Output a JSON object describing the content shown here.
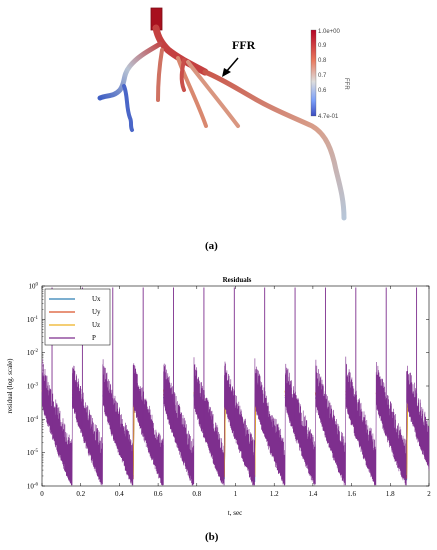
{
  "panel_a": {
    "caption": "(a)",
    "ffr_annotation": "FFR",
    "colorbar": {
      "max_label": "1.0e+00",
      "min_label": "4.7e-01",
      "ticks": [
        "0.9",
        "0.8",
        "0.7",
        "0.6"
      ],
      "title": "FFR",
      "colors": {
        "high": "#b40426",
        "mid": "#dddddd",
        "low": "#3b4cc0"
      }
    }
  },
  "panel_b": {
    "caption": "(b)"
  },
  "chart_data": {
    "type": "line",
    "title": "Residuals",
    "xlabel": "t, sec",
    "ylabel": "residual (log. scale)",
    "xlim": [
      0,
      2
    ],
    "ylim": [
      1e-06,
      1
    ],
    "log_y": true,
    "x_ticks": [
      "0",
      "0.2",
      "0.4",
      "0.6",
      "0.8",
      "1",
      "1.2",
      "1.4",
      "1.6",
      "1.8",
      "2"
    ],
    "y_ticks": [
      "10^-6",
      "10^-5",
      "10^-4",
      "10^-3",
      "10^-2",
      "10^-1",
      "10^0"
    ],
    "legend_position": "top-left",
    "series": [
      {
        "name": "Ux",
        "color": "#2f7fb5"
      },
      {
        "name": "Uy",
        "color": "#d9542a"
      },
      {
        "name": "Uz",
        "color": "#eeb020"
      },
      {
        "name": "P",
        "color": "#7e2f8e"
      }
    ],
    "cycle_period": 0.157,
    "spike_peak": 0.9,
    "cycle_start_level": 0.0005,
    "cycle_end_level": 1.5e-06
  }
}
